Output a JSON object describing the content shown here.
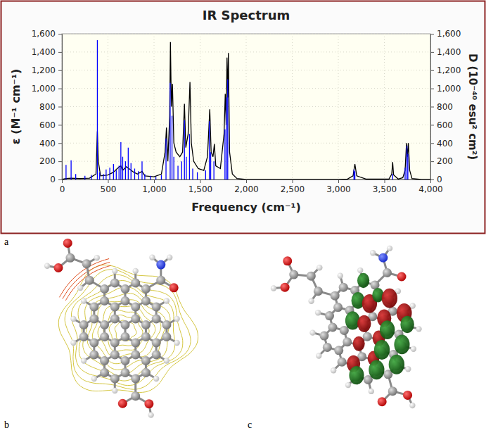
{
  "chart_data": {
    "type": "line",
    "title": "IR Spectrum",
    "xlabel": "Frequency (cm⁻¹)",
    "ylabel": "ε (M⁻¹ cm⁻¹)",
    "y2label": "D (10⁻⁴⁰ esu² cm²)",
    "xlim": [
      0,
      4000
    ],
    "xticks": [
      0,
      500,
      {
        "value": 1000,
        "label": "1,000"
      },
      {
        "value": 1500,
        "label": "1,500"
      },
      {
        "value": 2000,
        "label": "2,000"
      },
      {
        "value": 2500,
        "label": "2,500"
      },
      {
        "value": 3000,
        "label": "3,000"
      },
      {
        "value": 3500,
        "label": "3,500"
      },
      {
        "value": 4000,
        "label": "4,000"
      }
    ],
    "ylim": [
      0,
      1600
    ],
    "yticks": [
      0,
      200,
      400,
      600,
      800,
      {
        "value": 1000,
        "label": "1,000"
      },
      {
        "value": 1200,
        "label": "1,200"
      },
      {
        "value": 1400,
        "label": "1,400"
      },
      {
        "value": 1600,
        "label": "1,600"
      }
    ],
    "y2lim": [
      0,
      1600
    ],
    "y2ticks": [
      0,
      200,
      400,
      600,
      800,
      {
        "value": 1000,
        "label": "1,000"
      },
      {
        "value": 1200,
        "label": "1,200"
      },
      {
        "value": 1400,
        "label": "1,400"
      },
      {
        "value": 1600,
        "label": "1,600"
      }
    ],
    "grid": true,
    "series": [
      {
        "type": "line",
        "color": "#000000",
        "x": [
          0,
          40,
          100,
          200,
          300,
          370,
          385,
          395,
          420,
          500,
          560,
          600,
          640,
          660,
          700,
          740,
          780,
          820,
          870,
          900,
          1000,
          1080,
          1120,
          1135,
          1150,
          1170,
          1178,
          1188,
          1200,
          1215,
          1240,
          1280,
          1310,
          1330,
          1345,
          1370,
          1390,
          1405,
          1430,
          1480,
          1540,
          1580,
          1605,
          1620,
          1640,
          1655,
          1670,
          1720,
          1760,
          1773,
          1783,
          1792,
          1800,
          1807,
          1820,
          1850,
          1900,
          2000,
          2500,
          3000,
          3100,
          3160,
          3180,
          3200,
          3300,
          3550,
          3580,
          3590,
          3600,
          3650,
          3700,
          3725,
          3740,
          3750,
          3760,
          3775,
          3800,
          3900,
          4000
        ],
        "values": [
          0,
          10,
          15,
          10,
          15,
          60,
          530,
          200,
          40,
          50,
          80,
          120,
          150,
          100,
          140,
          110,
          80,
          60,
          90,
          40,
          30,
          60,
          300,
          570,
          200,
          700,
          1510,
          800,
          1050,
          400,
          300,
          250,
          300,
          830,
          350,
          500,
          1070,
          400,
          200,
          120,
          100,
          250,
          770,
          300,
          250,
          390,
          150,
          120,
          500,
          940,
          600,
          1340,
          900,
          1390,
          300,
          60,
          10,
          0,
          0,
          0,
          5,
          40,
          170,
          40,
          5,
          5,
          60,
          190,
          50,
          5,
          20,
          100,
          400,
          250,
          400,
          100,
          10,
          0,
          0
        ]
      },
      {
        "type": "stem",
        "color": "#0000ff",
        "axis": "y2",
        "x": [
          45,
          100,
          150,
          250,
          320,
          385,
          410,
          450,
          480,
          520,
          560,
          590,
          620,
          640,
          660,
          690,
          720,
          750,
          790,
          830,
          870,
          900,
          960,
          1020,
          1080,
          1130,
          1175,
          1195,
          1215,
          1260,
          1300,
          1330,
          1350,
          1385,
          1420,
          1470,
          1560,
          1600,
          1615,
          1650,
          1770,
          1785,
          1800,
          3170,
          3180,
          3590,
          3725,
          3745,
          3755
        ],
        "values": [
          160,
          210,
          60,
          40,
          50,
          1530,
          80,
          60,
          110,
          130,
          170,
          100,
          150,
          410,
          250,
          200,
          350,
          180,
          120,
          90,
          200,
          60,
          40,
          30,
          50,
          450,
          1060,
          700,
          250,
          150,
          200,
          650,
          250,
          500,
          120,
          80,
          100,
          640,
          300,
          200,
          550,
          900,
          1100,
          110,
          90,
          60,
          130,
          370,
          280
        ]
      }
    ]
  },
  "figure": {
    "panel_labels": [
      "a",
      "b",
      "c"
    ]
  }
}
